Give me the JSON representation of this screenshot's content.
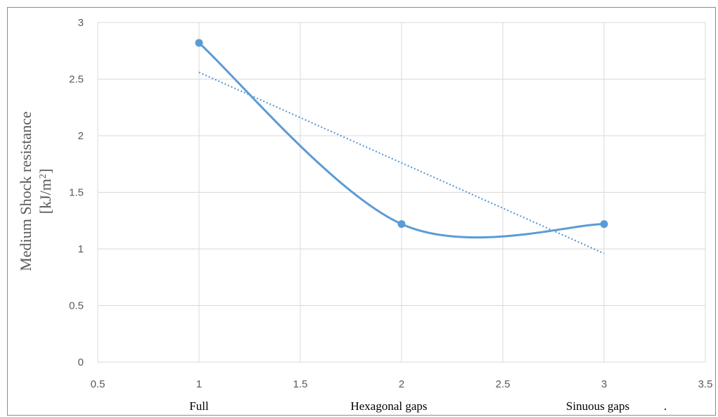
{
  "chart_data": {
    "type": "scatter",
    "series": [
      {
        "x": [
          1,
          2,
          3
        ],
        "y": [
          2.82,
          1.22,
          1.22
        ],
        "style": "smooth line with markers",
        "color": "#5b9bd5"
      }
    ],
    "trendline": {
      "type": "linear",
      "style": "dotted",
      "color": "#5b9bd5",
      "x": [
        1,
        3
      ],
      "y": [
        2.56,
        0.96
      ]
    },
    "xlim": [
      0.5,
      3.5
    ],
    "ylim": [
      0,
      3
    ],
    "xticks": [
      "0.5",
      "1",
      "1.5",
      "2",
      "2.5",
      "3",
      "3.5"
    ],
    "yticks": [
      "0",
      "0.5",
      "1",
      "1.5",
      "2",
      "2.5",
      "3"
    ],
    "ylabel_line1": "Medium Shock resistance",
    "ylabel_line2": "[kJ/m2]",
    "category_labels": [
      "Full",
      "Hexagonal gaps",
      "Sinuous gaps",
      "."
    ],
    "grid": true,
    "legend": "none"
  }
}
